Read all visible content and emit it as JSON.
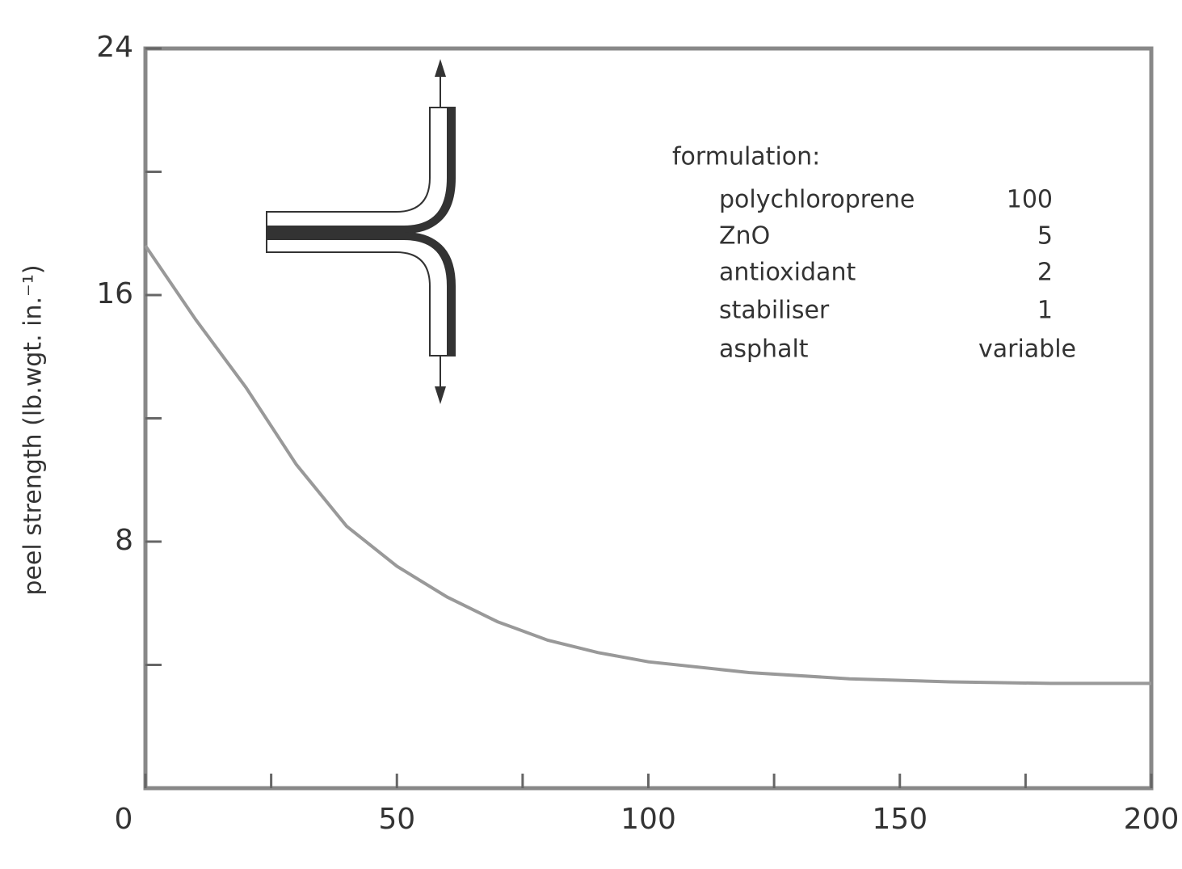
{
  "chart_data": {
    "type": "line",
    "y_label": "peel strength (lb.wgt. in.⁻¹)",
    "x": [
      0,
      10,
      20,
      30,
      40,
      50,
      60,
      70,
      80,
      90,
      100,
      120,
      140,
      160,
      180,
      200
    ],
    "series": [
      {
        "color": "#999999",
        "values": [
          17.6,
          15.2,
          13.0,
          10.5,
          8.5,
          7.2,
          6.2,
          5.4,
          4.8,
          4.4,
          4.1,
          3.75,
          3.55,
          3.45,
          3.4,
          3.4
        ]
      }
    ],
    "xlim": [
      0,
      200
    ],
    "xticks": [
      0,
      50,
      100,
      150,
      200
    ],
    "x_minor_ticks": [
      25,
      75,
      125,
      175
    ],
    "ylim": [
      0,
      24
    ],
    "yticks": [
      8,
      16,
      24
    ],
    "y_minor_ticks": [
      4,
      12,
      20
    ],
    "grid": false,
    "legend_box": {
      "title": "formulation:",
      "rows": [
        {
          "name": "polychloroprene",
          "amount": 100
        },
        {
          "name": "ZnO",
          "amount": 5
        },
        {
          "name": "antioxidant",
          "amount": 2
        },
        {
          "name": "stabiliser",
          "amount": 1
        },
        {
          "name": "asphalt",
          "amount": "variable"
        }
      ]
    }
  }
}
